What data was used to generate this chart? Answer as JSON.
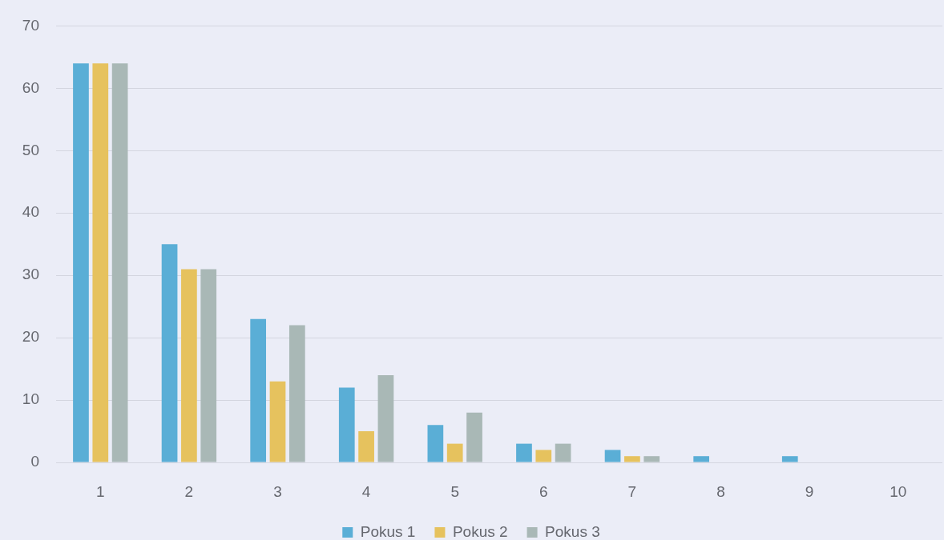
{
  "chart_data": {
    "type": "bar",
    "categories": [
      "1",
      "2",
      "3",
      "4",
      "5",
      "6",
      "7",
      "8",
      "9",
      "10"
    ],
    "series": [
      {
        "name": "Pokus 1",
        "color": "#5aaed6",
        "values": [
          64,
          35,
          23,
          12,
          6,
          3,
          2,
          1,
          1,
          null
        ]
      },
      {
        "name": "Pokus 2",
        "color": "#e6c25e",
        "values": [
          64,
          31,
          13,
          5,
          3,
          2,
          1,
          null,
          null,
          null
        ]
      },
      {
        "name": "Pokus 3",
        "color": "#a9b8b6",
        "values": [
          64,
          31,
          22,
          14,
          8,
          3,
          1,
          null,
          null,
          null
        ]
      }
    ],
    "ylim": [
      0,
      70
    ],
    "yticks": [
      0,
      10,
      20,
      30,
      40,
      50,
      60,
      70
    ],
    "grid": "y",
    "legend": "bottom"
  }
}
